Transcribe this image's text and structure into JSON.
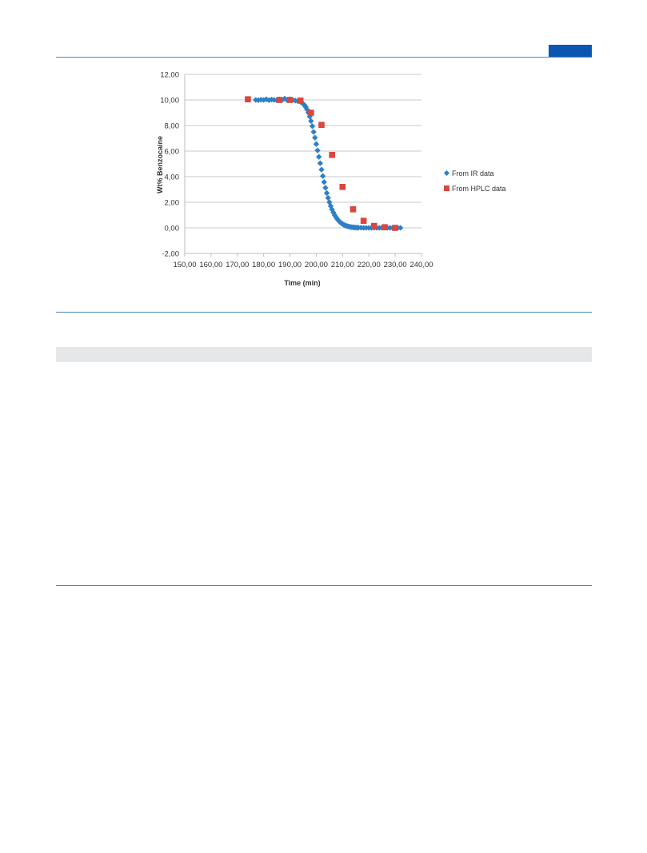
{
  "colors": {
    "rule": "#4a86c5",
    "corner_tab": "#0b57b0",
    "gray_band": "#e6e7e9",
    "ir_series": "#2e7fc6",
    "hplc_series": "#d9473f"
  },
  "chart_data": {
    "type": "scatter",
    "title": "",
    "xlabel": "Time (min)",
    "ylabel": "Wt% Benzocaine",
    "xlim": [
      150,
      240
    ],
    "ylim": [
      -2,
      12
    ],
    "x_ticks": [
      "150,00",
      "160,00",
      "170,00",
      "180,00",
      "190,00",
      "200,00",
      "210,00",
      "220,00",
      "230,00",
      "240,00"
    ],
    "y_ticks": [
      "-2,00",
      "0,00",
      "2,00",
      "4,00",
      "6,00",
      "8,00",
      "10,00",
      "12,00"
    ],
    "grid": "horizontal",
    "legend_position": "right",
    "series": [
      {
        "name": "From IR data",
        "marker": "diamond",
        "color": "#2e7fc6",
        "x": [
          177,
          178,
          179,
          180,
          181,
          182,
          183,
          184,
          185,
          186,
          187,
          188,
          189,
          190,
          191,
          192,
          193,
          194,
          195,
          195.5,
          196,
          196.5,
          197,
          197.5,
          198,
          198.5,
          199,
          199.5,
          200,
          200.5,
          201,
          201.5,
          202,
          202.5,
          203,
          203.5,
          204,
          204.5,
          205,
          205.5,
          206,
          206.5,
          207,
          207.5,
          208,
          208.5,
          209,
          209.5,
          210,
          210.5,
          211,
          211.5,
          212,
          212.5,
          213,
          213.5,
          214,
          214.5,
          215,
          215.5,
          216,
          217,
          218,
          219,
          220,
          221,
          222,
          223,
          224,
          225,
          226,
          227,
          228,
          229,
          230,
          231,
          232
        ],
        "y": [
          10,
          9.98,
          10.02,
          10,
          10.05,
          9.98,
          10.03,
          10,
          9.97,
          10.04,
          10,
          10.1,
          9.98,
          10.05,
          10,
          9.95,
          9.9,
          9.85,
          9.7,
          9.6,
          9.45,
          9.25,
          9.0,
          8.7,
          8.35,
          7.95,
          7.5,
          7.05,
          6.55,
          6.05,
          5.55,
          5.05,
          4.55,
          4.05,
          3.58,
          3.13,
          2.72,
          2.34,
          2.0,
          1.7,
          1.43,
          1.2,
          1.0,
          0.83,
          0.68,
          0.56,
          0.46,
          0.37,
          0.3,
          0.24,
          0.19,
          0.15,
          0.12,
          0.09,
          0.07,
          0.05,
          0.04,
          0.03,
          0.02,
          0.02,
          0.01,
          0.01,
          0.0,
          0.0,
          0.0,
          0.0,
          0.0,
          0.0,
          0.0,
          0.0,
          0.0,
          0.0,
          0.0,
          0.0,
          0.0,
          0.0,
          0.0
        ]
      },
      {
        "name": "From HPLC data",
        "marker": "square",
        "color": "#d9473f",
        "x": [
          174,
          186,
          190,
          194,
          198,
          202,
          206,
          210,
          214,
          218,
          222,
          226,
          230
        ],
        "y": [
          10.05,
          10.0,
          10.0,
          9.95,
          9.0,
          8.05,
          5.7,
          3.2,
          1.45,
          0.55,
          0.15,
          0.05,
          0.0
        ]
      }
    ]
  }
}
